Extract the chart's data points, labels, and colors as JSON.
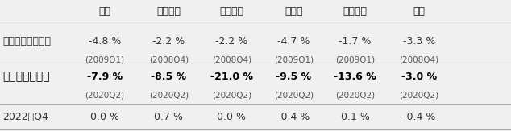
{
  "col_headers": [
    "日本",
    "アメリカ",
    "イギリス",
    "ドイツ",
    "フランス",
    "韓国"
  ],
  "row_labels": [
    "リーマンショック",
    "コロナショック",
    "2022年Q4"
  ],
  "row_bold": [
    false,
    true,
    false
  ],
  "values": [
    [
      "-4.8 %",
      "-2.2 %",
      "-2.2 %",
      "-4.7 %",
      "-1.7 %",
      "-3.3 %"
    ],
    [
      "-7.9 %",
      "-8.5 %",
      "-21.0 %",
      "-9.5 %",
      "-13.6 %",
      "-3.0 %"
    ],
    [
      "0.0 %",
      "0.7 %",
      "0.0 %",
      "-0.4 %",
      "0.1 %",
      "-0.4 %"
    ]
  ],
  "sub_values": [
    [
      "(2009Q1)",
      "(2008Q4)",
      "(2008Q4)",
      "(2009Q1)",
      "(2009Q1)",
      "(2008Q4)"
    ],
    [
      "(2020Q2)",
      "(2020Q2)",
      "(2020Q2)",
      "(2020Q2)",
      "(2020Q2)",
      "(2020Q2)"
    ],
    [
      "",
      "",
      "",
      "",
      "",
      ""
    ]
  ],
  "bg_color": "#f0f0f0",
  "table_bg": "#ffffff",
  "header_color": "#222222",
  "normal_text_color": "#333333",
  "bold_text_color": "#000000",
  "sub_text_color": "#555555",
  "line_color": "#aaaaaa",
  "header_fontsize": 9,
  "value_fontsize": 9,
  "sub_fontsize": 7.5,
  "row_label_fontsize": 9,
  "row_label_bold_fontsize": 10
}
